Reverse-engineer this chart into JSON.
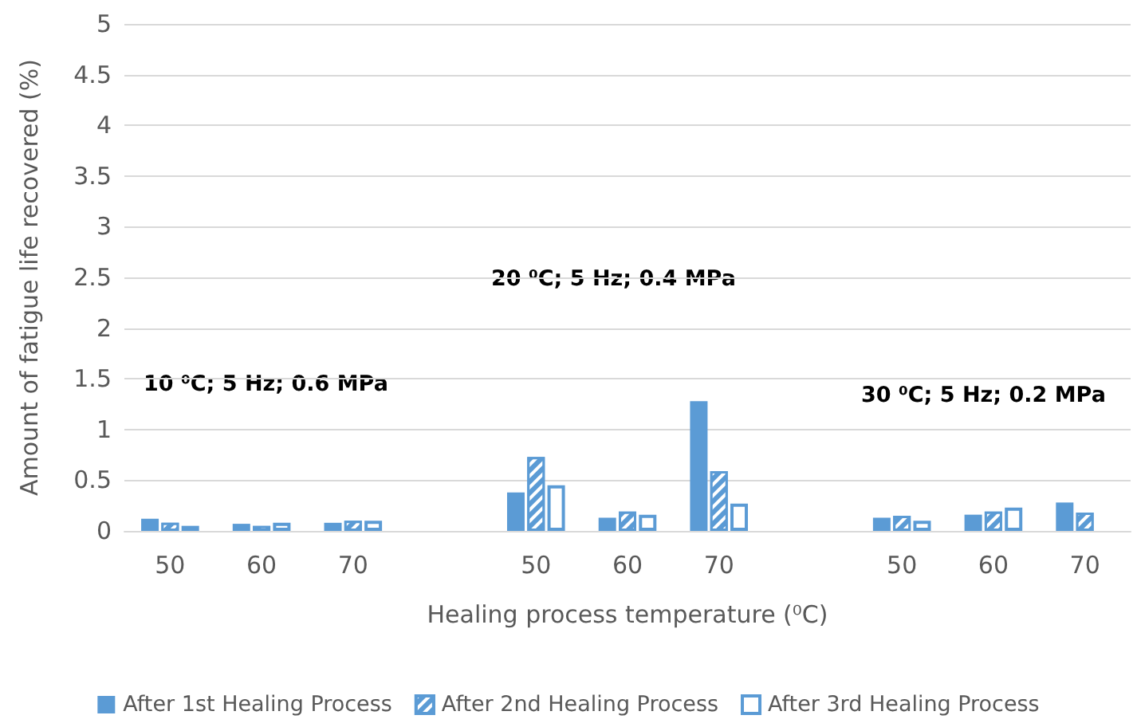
{
  "chart_data": {
    "type": "bar",
    "categories": [
      "50",
      "60",
      "70",
      null,
      "50",
      "60",
      "70",
      null,
      "50",
      "60",
      "70"
    ],
    "series": [
      {
        "name": "After 1st Healing Process",
        "color": "#5b9bd5",
        "values": [
          0.12,
          0.07,
          0.08,
          null,
          0.38,
          0.13,
          1.28,
          null,
          0.13,
          0.16,
          0.28
        ]
      },
      {
        "name": "After 2nd Healing Process",
        "color": "#5b9bd5",
        "values": [
          0.08,
          0.05,
          0.1,
          null,
          0.73,
          0.19,
          0.59,
          null,
          0.15,
          0.19,
          0.18
        ]
      },
      {
        "name": "After 3rd Healing Process",
        "color": "#5b9bd5",
        "values": [
          0.05,
          0.08,
          0.1,
          null,
          0.45,
          0.16,
          0.27,
          null,
          0.1,
          0.23,
          null
        ]
      }
    ],
    "xlabel": "Healing process temperature (⁰C)",
    "ylabel": "Amount of fatigue life recovered (%)",
    "ylim": [
      0,
      5
    ],
    "yticks": [
      0,
      0.5,
      1,
      1.5,
      2,
      2.5,
      3,
      3.5,
      4,
      4.5,
      5
    ],
    "annotations": [
      "10 ⁰C; 5 Hz; 0.6 MPa",
      "20 ⁰C; 5 Hz; 0.4 MPa",
      "30 ⁰C; 5 Hz; 0.2 MPa"
    ],
    "grid": "y",
    "legend": "bottom"
  }
}
